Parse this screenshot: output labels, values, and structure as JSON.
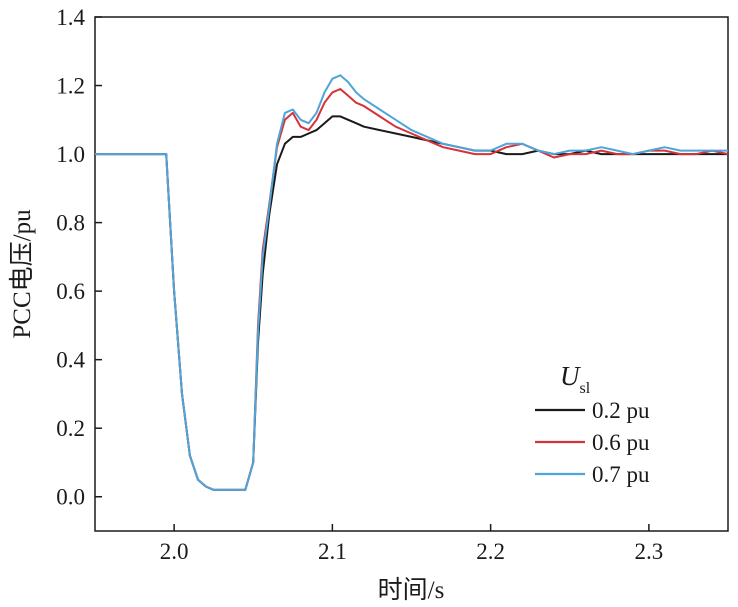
{
  "chart_data": {
    "type": "line",
    "title": "",
    "xlabel": "时间/s",
    "ylabel": "PCC电压/pu",
    "xlim": [
      1.95,
      2.35
    ],
    "ylim": [
      -0.1,
      1.4
    ],
    "xticks": [
      2.0,
      2.1,
      2.2,
      2.3
    ],
    "xtick_labels": [
      "2.0",
      "2.1",
      "2.2",
      "2.3"
    ],
    "yticks": [
      0.0,
      0.2,
      0.4,
      0.6,
      0.8,
      1.0,
      1.2,
      1.4
    ],
    "ytick_labels": [
      "0.0",
      "0.2",
      "0.4",
      "0.6",
      "0.8",
      "1.0",
      "1.2",
      "1.4"
    ],
    "grid": false,
    "legend": {
      "placement": "bottom-right",
      "title_main": "U",
      "title_sub": "sl"
    },
    "series": [
      {
        "name": "0.2 pu",
        "color": "#1a1a1a",
        "x": [
          1.95,
          1.96,
          1.97,
          1.98,
          1.99,
          1.995,
          2.0,
          2.005,
          2.01,
          2.015,
          2.02,
          2.025,
          2.03,
          2.035,
          2.04,
          2.045,
          2.05,
          2.053,
          2.056,
          2.06,
          2.065,
          2.07,
          2.075,
          2.08,
          2.085,
          2.09,
          2.095,
          2.1,
          2.105,
          2.11,
          2.115,
          2.12,
          2.13,
          2.14,
          2.15,
          2.16,
          2.17,
          2.18,
          2.19,
          2.2,
          2.21,
          2.22,
          2.23,
          2.24,
          2.25,
          2.26,
          2.27,
          2.28,
          2.29,
          2.3,
          2.31,
          2.32,
          2.33,
          2.34,
          2.35
        ],
        "y": [
          1.0,
          1.0,
          1.0,
          1.0,
          1.0,
          1.0,
          0.6,
          0.3,
          0.12,
          0.05,
          0.03,
          0.02,
          0.02,
          0.02,
          0.02,
          0.02,
          0.1,
          0.45,
          0.65,
          0.82,
          0.97,
          1.03,
          1.05,
          1.05,
          1.06,
          1.07,
          1.09,
          1.11,
          1.11,
          1.1,
          1.09,
          1.08,
          1.07,
          1.06,
          1.05,
          1.04,
          1.03,
          1.02,
          1.01,
          1.01,
          1.0,
          1.0,
          1.01,
          1.0,
          1.0,
          1.01,
          1.0,
          1.0,
          1.0,
          1.0,
          1.0,
          1.0,
          1.0,
          1.0,
          1.0
        ]
      },
      {
        "name": "0.6 pu",
        "color": "#d6323a",
        "x": [
          1.95,
          1.96,
          1.97,
          1.98,
          1.99,
          1.995,
          2.0,
          2.005,
          2.01,
          2.015,
          2.02,
          2.025,
          2.03,
          2.035,
          2.04,
          2.045,
          2.05,
          2.053,
          2.056,
          2.06,
          2.065,
          2.07,
          2.075,
          2.08,
          2.085,
          2.09,
          2.095,
          2.1,
          2.105,
          2.11,
          2.115,
          2.12,
          2.13,
          2.14,
          2.15,
          2.16,
          2.17,
          2.18,
          2.19,
          2.2,
          2.21,
          2.22,
          2.23,
          2.24,
          2.25,
          2.26,
          2.27,
          2.28,
          2.29,
          2.3,
          2.31,
          2.32,
          2.33,
          2.34,
          2.35
        ],
        "y": [
          1.0,
          1.0,
          1.0,
          1.0,
          1.0,
          1.0,
          0.6,
          0.3,
          0.12,
          0.05,
          0.03,
          0.02,
          0.02,
          0.02,
          0.02,
          0.02,
          0.1,
          0.5,
          0.72,
          0.85,
          1.02,
          1.1,
          1.12,
          1.08,
          1.07,
          1.1,
          1.15,
          1.18,
          1.19,
          1.17,
          1.15,
          1.14,
          1.11,
          1.08,
          1.06,
          1.04,
          1.02,
          1.01,
          1.0,
          1.0,
          1.02,
          1.03,
          1.01,
          0.99,
          1.0,
          1.0,
          1.01,
          1.0,
          1.0,
          1.01,
          1.01,
          1.0,
          1.0,
          1.01,
          1.0
        ]
      },
      {
        "name": "0.7 pu",
        "color": "#4ea5d9",
        "x": [
          1.95,
          1.96,
          1.97,
          1.98,
          1.99,
          1.995,
          2.0,
          2.005,
          2.01,
          2.015,
          2.02,
          2.025,
          2.03,
          2.035,
          2.04,
          2.045,
          2.05,
          2.053,
          2.056,
          2.06,
          2.065,
          2.07,
          2.075,
          2.08,
          2.085,
          2.09,
          2.095,
          2.1,
          2.105,
          2.11,
          2.115,
          2.12,
          2.13,
          2.14,
          2.15,
          2.16,
          2.17,
          2.18,
          2.19,
          2.2,
          2.21,
          2.22,
          2.23,
          2.24,
          2.25,
          2.26,
          2.27,
          2.28,
          2.29,
          2.3,
          2.31,
          2.32,
          2.33,
          2.34,
          2.35
        ],
        "y": [
          1.0,
          1.0,
          1.0,
          1.0,
          1.0,
          1.0,
          0.6,
          0.3,
          0.12,
          0.05,
          0.03,
          0.02,
          0.02,
          0.02,
          0.02,
          0.02,
          0.1,
          0.48,
          0.7,
          0.84,
          1.03,
          1.12,
          1.13,
          1.1,
          1.09,
          1.12,
          1.18,
          1.22,
          1.23,
          1.21,
          1.18,
          1.16,
          1.13,
          1.1,
          1.07,
          1.05,
          1.03,
          1.02,
          1.01,
          1.01,
          1.03,
          1.03,
          1.01,
          1.0,
          1.01,
          1.01,
          1.02,
          1.01,
          1.0,
          1.01,
          1.02,
          1.01,
          1.01,
          1.01,
          1.01
        ]
      }
    ]
  }
}
